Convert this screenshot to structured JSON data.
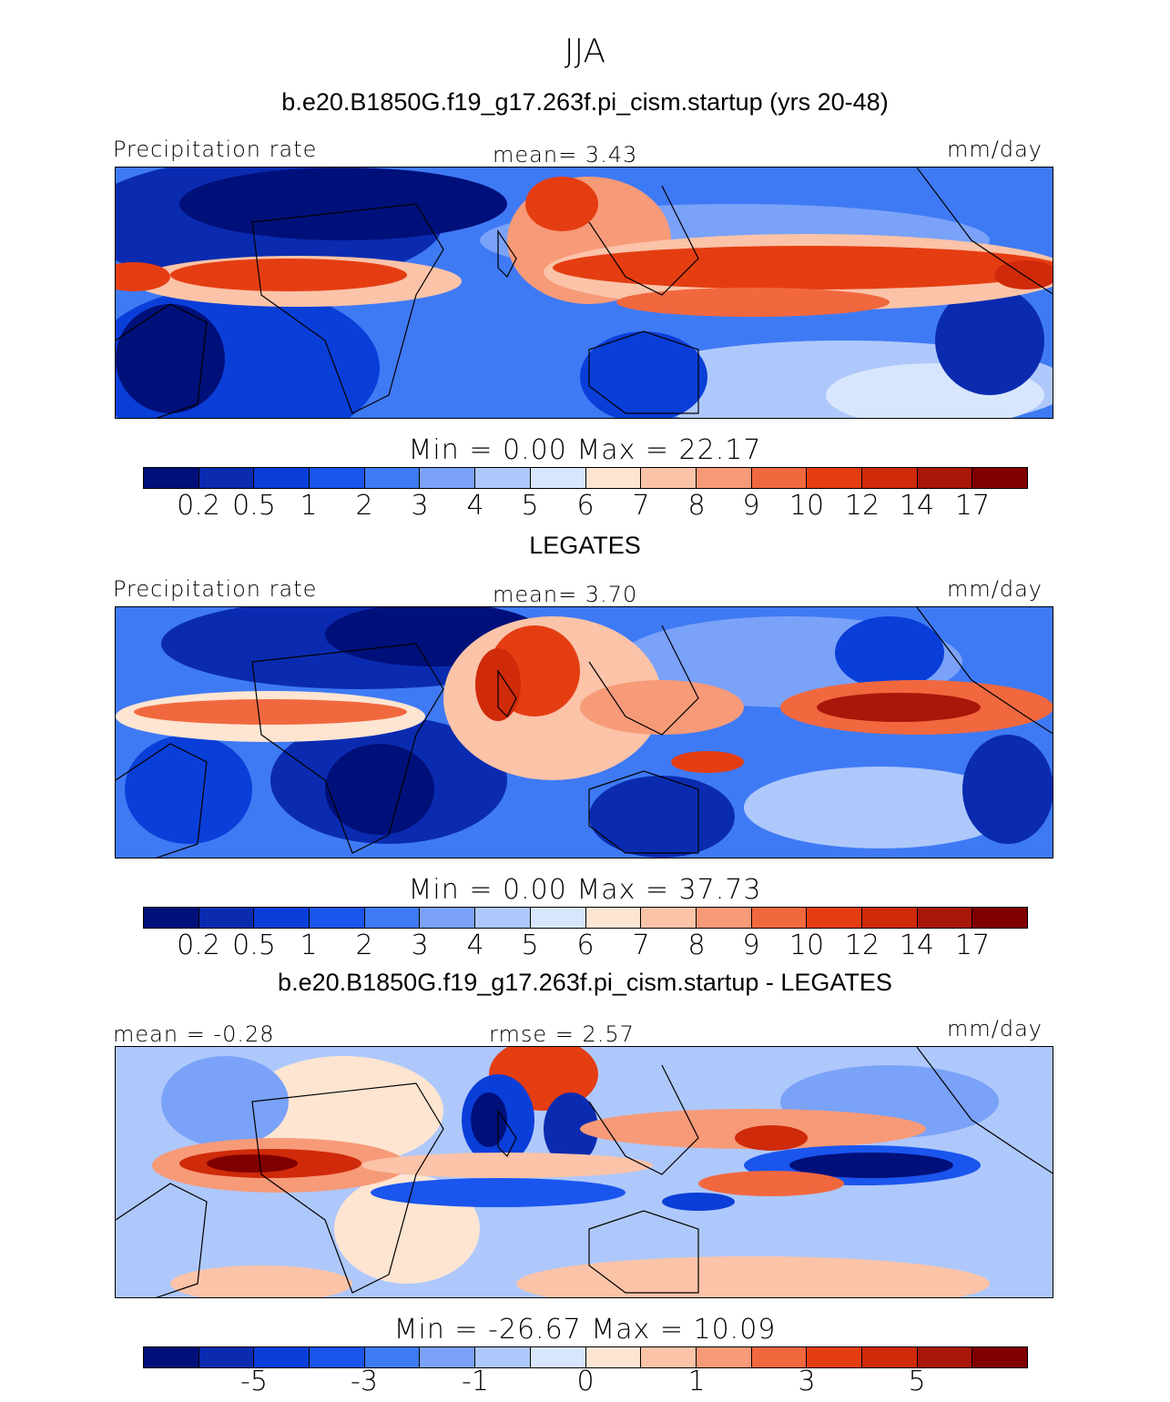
{
  "title": "JJA",
  "panels": [
    {
      "title": "b.e20.B1850G.f19_g17.263f.pi_cism.startup (yrs 20-48)",
      "left_label": "Precipitation rate",
      "center_label": "mean=   3.43",
      "right_label": "mm/day",
      "colorbar_title": "Min =    0.00  Max =   22.17",
      "ticks": [
        "0.2",
        "0.5",
        "1",
        "2",
        "3",
        "4",
        "5",
        "6",
        "7",
        "8",
        "9",
        "10",
        "12",
        "14",
        "17"
      ]
    },
    {
      "title": "LEGATES",
      "left_label": "Precipitation rate",
      "center_label": "mean=   3.70",
      "right_label": "mm/day",
      "colorbar_title": "Min =    0.00  Max =   37.73",
      "ticks": [
        "0.2",
        "0.5",
        "1",
        "2",
        "3",
        "4",
        "5",
        "6",
        "7",
        "8",
        "9",
        "10",
        "12",
        "14",
        "17"
      ]
    },
    {
      "title": "b.e20.B1850G.f19_g17.263f.pi_cism.startup - LEGATES",
      "left_label": "mean =  -0.28",
      "center_label": "rmse =    2.57",
      "right_label": "mm/day",
      "colorbar_title": "Min = -26.67  Max =   10.09",
      "ticks": [
        "-5",
        "-3",
        "-1",
        "0",
        "1",
        "3",
        "5"
      ]
    }
  ],
  "colors": {
    "palette": [
      "#00107a",
      "#0a2bb0",
      "#0a3ed8",
      "#1a55ee",
      "#3f7af5",
      "#7aa2f8",
      "#aec8fb",
      "#d8e6fd",
      "#fde5d2",
      "#fbc3a8",
      "#f79a78",
      "#f1683f",
      "#e53d12",
      "#cf2a0a",
      "#a9170a",
      "#800000"
    ]
  }
}
